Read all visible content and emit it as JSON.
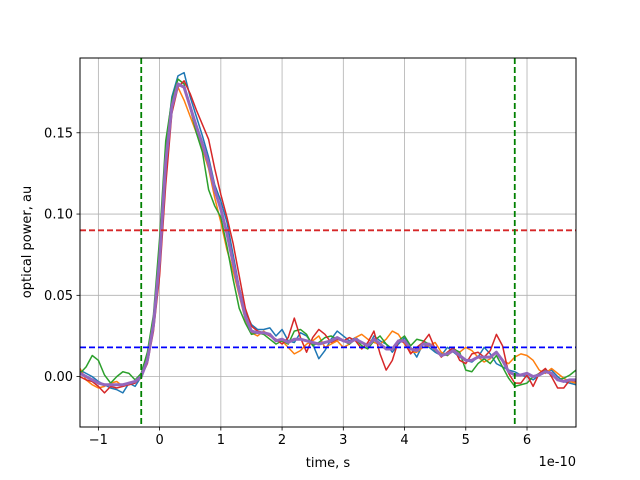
{
  "chart_data": {
    "type": "line",
    "xlabel": "time, s",
    "ylabel": "optical power, au",
    "x_offset_text": "1e-10",
    "xlim": [
      -1.3,
      6.8
    ],
    "ylim": [
      -0.031,
      0.196
    ],
    "x_ticks": [
      -1,
      0,
      1,
      2,
      3,
      4,
      5,
      6
    ],
    "x_tick_labels": [
      "−1",
      "0",
      "1",
      "2",
      "3",
      "4",
      "5",
      "6"
    ],
    "y_ticks": [
      0.0,
      0.05,
      0.1,
      0.15
    ],
    "y_tick_labels": [
      "0.00",
      "0.05",
      "0.10",
      "0.15"
    ],
    "grid": true,
    "x": [
      -1.3,
      -1.2,
      -1.1,
      -1.0,
      -0.9,
      -0.8,
      -0.7,
      -0.6,
      -0.5,
      -0.4,
      -0.3,
      -0.2,
      -0.1,
      0.0,
      0.1,
      0.2,
      0.3,
      0.4,
      0.5,
      0.6,
      0.7,
      0.8,
      0.9,
      1.0,
      1.1,
      1.2,
      1.3,
      1.4,
      1.5,
      1.6,
      1.7,
      1.8,
      1.9,
      2.0,
      2.1,
      2.2,
      2.3,
      2.4,
      2.5,
      2.6,
      2.7,
      2.8,
      2.9,
      3.0,
      3.1,
      3.2,
      3.3,
      3.4,
      3.5,
      3.6,
      3.7,
      3.8,
      3.9,
      4.0,
      4.1,
      4.2,
      4.3,
      4.4,
      4.5,
      4.6,
      4.7,
      4.8,
      4.9,
      5.0,
      5.1,
      5.2,
      5.3,
      5.4,
      5.5,
      5.6,
      5.7,
      5.8,
      5.9,
      6.0,
      6.1,
      6.2,
      6.3,
      6.4,
      6.5,
      6.6,
      6.7,
      6.8
    ],
    "series": [
      {
        "color": "#1f77b4",
        "width": 1.5,
        "values": [
          0.004,
          0.002,
          0.0,
          -0.003,
          -0.005,
          -0.007,
          -0.008,
          -0.01,
          -0.004,
          -0.006,
          0.0,
          0.01,
          0.035,
          0.075,
          0.14,
          0.172,
          0.185,
          0.187,
          0.172,
          0.16,
          0.148,
          0.135,
          0.118,
          0.108,
          0.095,
          0.075,
          0.055,
          0.04,
          0.032,
          0.029,
          0.029,
          0.03,
          0.025,
          0.029,
          0.022,
          0.021,
          0.027,
          0.025,
          0.02,
          0.011,
          0.016,
          0.023,
          0.028,
          0.025,
          0.022,
          0.024,
          0.021,
          0.018,
          0.025,
          0.022,
          0.02,
          0.015,
          0.02,
          0.024,
          0.018,
          0.012,
          0.02,
          0.018,
          0.015,
          0.013,
          0.018,
          0.015,
          0.012,
          0.01,
          0.009,
          0.012,
          0.018,
          0.014,
          0.008,
          0.006,
          0.004,
          0.003,
          0.001,
          0.0,
          -0.002,
          0.001,
          0.003,
          0.004,
          0.0,
          -0.003,
          -0.004,
          -0.005
        ]
      },
      {
        "color": "#ff7f0e",
        "width": 1.5,
        "values": [
          0.005,
          -0.002,
          -0.005,
          -0.007,
          -0.006,
          -0.004,
          -0.003,
          -0.006,
          -0.004,
          -0.003,
          -0.001,
          0.012,
          0.033,
          0.072,
          0.135,
          0.168,
          0.178,
          0.17,
          0.16,
          0.15,
          0.14,
          0.128,
          0.11,
          0.095,
          0.078,
          0.065,
          0.05,
          0.035,
          0.027,
          0.025,
          0.028,
          0.025,
          0.022,
          0.022,
          0.018,
          0.014,
          0.016,
          0.02,
          0.022,
          0.025,
          0.018,
          0.02,
          0.022,
          0.018,
          0.02,
          0.024,
          0.026,
          0.023,
          0.021,
          0.02,
          0.023,
          0.028,
          0.026,
          0.02,
          0.015,
          0.015,
          0.018,
          0.019,
          0.021,
          0.015,
          0.013,
          0.016,
          0.015,
          0.018,
          0.016,
          0.012,
          0.009,
          0.011,
          0.015,
          0.01,
          0.008,
          0.012,
          0.014,
          0.013,
          0.01,
          0.004,
          0.002,
          0.005,
          0.002,
          -0.001,
          -0.003,
          -0.004
        ]
      },
      {
        "color": "#2ca02c",
        "width": 1.5,
        "values": [
          0.002,
          0.006,
          0.013,
          0.01,
          0.001,
          -0.004,
          0.0,
          0.003,
          0.002,
          -0.002,
          0.002,
          0.015,
          0.038,
          0.085,
          0.145,
          0.17,
          0.183,
          0.18,
          0.165,
          0.15,
          0.138,
          0.115,
          0.105,
          0.098,
          0.08,
          0.06,
          0.042,
          0.033,
          0.026,
          0.027,
          0.026,
          0.023,
          0.02,
          0.022,
          0.02,
          0.028,
          0.029,
          0.026,
          0.019,
          0.021,
          0.024,
          0.025,
          0.023,
          0.022,
          0.02,
          0.023,
          0.019,
          0.017,
          0.022,
          0.025,
          0.02,
          0.017,
          0.022,
          0.025,
          0.019,
          0.023,
          0.022,
          0.02,
          0.016,
          0.014,
          0.013,
          0.017,
          0.015,
          0.004,
          0.003,
          0.008,
          0.011,
          0.008,
          0.013,
          0.006,
          -0.001,
          -0.006,
          -0.005,
          -0.004,
          0.0,
          0.002,
          0.004,
          0.001,
          -0.002,
          -0.001,
          0.001,
          0.004
        ]
      },
      {
        "color": "#d62728",
        "width": 1.5,
        "values": [
          0.0,
          -0.002,
          -0.003,
          -0.006,
          -0.01,
          -0.006,
          -0.007,
          -0.006,
          -0.005,
          -0.004,
          0.0,
          0.008,
          0.028,
          0.062,
          0.118,
          0.162,
          0.178,
          0.182,
          0.174,
          0.164,
          0.155,
          0.146,
          0.128,
          0.112,
          0.098,
          0.082,
          0.062,
          0.042,
          0.031,
          0.028,
          0.027,
          0.025,
          0.023,
          0.02,
          0.024,
          0.036,
          0.024,
          0.015,
          0.024,
          0.029,
          0.026,
          0.021,
          0.023,
          0.022,
          0.024,
          0.022,
          0.017,
          0.021,
          0.028,
          0.014,
          0.004,
          0.01,
          0.022,
          0.021,
          0.014,
          0.018,
          0.021,
          0.026,
          0.017,
          0.012,
          0.015,
          0.018,
          0.01,
          0.008,
          0.014,
          0.015,
          0.012,
          0.016,
          0.026,
          0.019,
          0.002,
          -0.004,
          -0.004,
          0.001,
          -0.006,
          0.002,
          0.005,
          0.0,
          -0.007,
          -0.007,
          -0.002,
          -0.003
        ]
      },
      {
        "color": "#9467bd",
        "width": 3.0,
        "values": [
          0.002,
          0.0,
          -0.002,
          -0.004,
          -0.005,
          -0.005,
          -0.005,
          -0.005,
          -0.004,
          -0.003,
          0.0,
          0.01,
          0.032,
          0.072,
          0.132,
          0.166,
          0.18,
          0.178,
          0.166,
          0.154,
          0.143,
          0.131,
          0.115,
          0.103,
          0.088,
          0.07,
          0.053,
          0.037,
          0.028,
          0.027,
          0.027,
          0.026,
          0.022,
          0.023,
          0.021,
          0.023,
          0.023,
          0.022,
          0.021,
          0.02,
          0.021,
          0.022,
          0.024,
          0.022,
          0.021,
          0.023,
          0.021,
          0.019,
          0.023,
          0.02,
          0.017,
          0.017,
          0.022,
          0.022,
          0.017,
          0.016,
          0.02,
          0.02,
          0.017,
          0.013,
          0.014,
          0.016,
          0.013,
          0.01,
          0.01,
          0.012,
          0.012,
          0.012,
          0.015,
          0.01,
          0.003,
          0.001,
          0.001,
          0.002,
          0.0,
          0.001,
          0.003,
          0.002,
          -0.002,
          -0.003,
          -0.002,
          -0.002
        ]
      }
    ],
    "hlines": [
      {
        "y": 0.09,
        "color": "#d62728",
        "style": "dashed"
      },
      {
        "y": 0.018,
        "color": "#0000ff",
        "style": "dashed"
      }
    ],
    "vlines": [
      {
        "x": -0.3,
        "color": "#008000",
        "style": "dashed"
      },
      {
        "x": 5.8,
        "color": "#008000",
        "style": "dashed"
      }
    ]
  }
}
